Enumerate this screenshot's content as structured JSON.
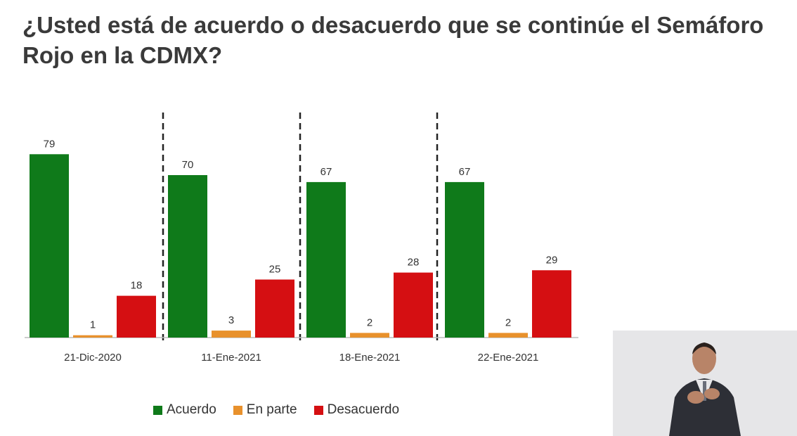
{
  "title": "¿Usted está de acuerdo o desacuerdo que se continúe el Semáforo Rojo en la CDMX?",
  "chart_data": {
    "type": "bar",
    "title": "¿Usted está de acuerdo o desacuerdo que se continúe el Semáforo Rojo en la CDMX?",
    "categories": [
      "21-Dic-2020",
      "11-Ene-2021",
      "18-Ene-2021",
      "22-Ene-2021"
    ],
    "series": [
      {
        "name": "Acuerdo",
        "color": "#0f7a1a",
        "values": [
          79,
          70,
          67,
          67
        ]
      },
      {
        "name": "En parte",
        "color": "#e8912c",
        "values": [
          1,
          3,
          2,
          2
        ]
      },
      {
        "name": "Desacuerdo",
        "color": "#d50f12",
        "values": [
          18,
          25,
          28,
          29
        ]
      }
    ],
    "xlabel": "",
    "ylabel": "",
    "ylim": [
      0,
      100
    ],
    "grid": false,
    "legend_position": "bottom"
  }
}
